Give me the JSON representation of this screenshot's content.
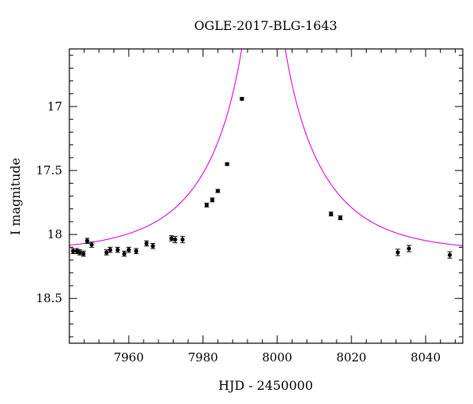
{
  "chart_data": {
    "type": "scatter",
    "title": "OGLE-2017-BLG-1643",
    "xlabel": "HJD - 2450000",
    "ylabel": "I magnitude",
    "xlim": [
      7944,
      8050
    ],
    "ylim": [
      18.85,
      16.55
    ],
    "y_inverted": true,
    "x_ticks": [
      7960,
      7980,
      8000,
      8020,
      8040
    ],
    "y_ticks": [
      17,
      17.5,
      18,
      18.5
    ],
    "y_tick_labels": [
      "17",
      "17.5",
      "18",
      "18.5"
    ],
    "grid": false,
    "legend": "none",
    "marker_color": "#000000",
    "model_color": "#e000e0",
    "series": [
      {
        "kind": "points_with_errors",
        "x": [
          7945.0,
          7946.0,
          7946.8,
          7947.8,
          7948.8,
          7950.0,
          7954.0,
          7955.0,
          7957.0,
          7958.8,
          7960.0,
          7962.0,
          7964.8,
          7966.5,
          7971.5,
          7972.5,
          7974.5,
          7981.0,
          7982.5,
          7984.0,
          7986.5,
          7990.5,
          8014.5,
          8017.0,
          8032.5,
          8035.5,
          8046.5
        ],
        "y": [
          18.13,
          18.13,
          18.14,
          18.15,
          18.05,
          18.08,
          18.14,
          18.12,
          18.12,
          18.15,
          18.12,
          18.13,
          18.07,
          18.09,
          18.03,
          18.04,
          18.04,
          17.77,
          17.73,
          17.66,
          17.45,
          16.94,
          17.84,
          17.87,
          18.14,
          18.11,
          18.16
        ],
        "err": [
          0.02,
          0.02,
          0.02,
          0.02,
          0.02,
          0.02,
          0.02,
          0.02,
          0.02,
          0.02,
          0.02,
          0.02,
          0.02,
          0.02,
          0.02,
          0.025,
          0.025,
          0.015,
          0.015,
          0.012,
          0.01,
          0.01,
          0.015,
          0.015,
          0.025,
          0.025,
          0.025
        ]
      },
      {
        "kind": "model_curve",
        "baseline_mag": 18.14,
        "t0": 7996.3,
        "u0": 0.025,
        "tE": 25.0
      }
    ]
  }
}
